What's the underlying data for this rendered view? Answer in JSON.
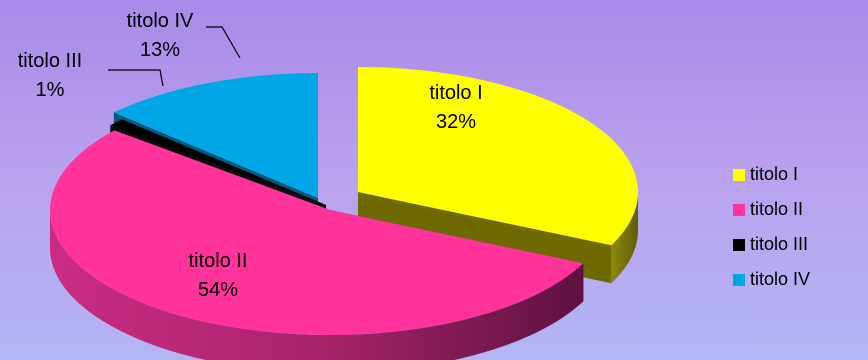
{
  "chart_data": {
    "type": "pie",
    "categories": [
      "titolo I",
      "titolo II",
      "titolo III",
      "titolo IV"
    ],
    "values": [
      32,
      54,
      1,
      13
    ],
    "value_labels": [
      "32%",
      "54%",
      "1%",
      "13%"
    ],
    "colors": [
      "#ffff00",
      "#ff3399",
      "#000000",
      "#00a6e6"
    ],
    "side_colors": [
      "#6e6a00",
      "#8a1d57",
      "#0d0d0d",
      "#035a7a"
    ],
    "legend_position": "right",
    "exploded": true,
    "three_d": true
  }
}
